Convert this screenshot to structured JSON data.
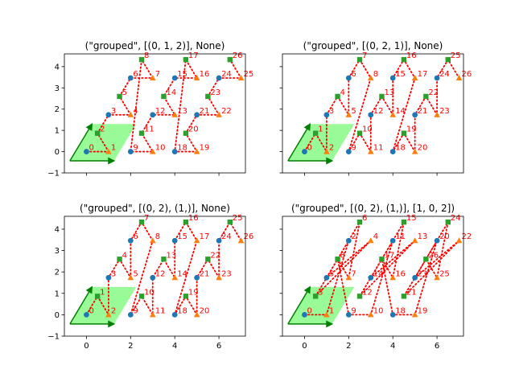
{
  "chart_data": [
    {
      "type": "scatter",
      "title": "(\"grouped\", [(0, 1, 2)], None)",
      "xlim": [
        -1,
        7.2
      ],
      "ylim": [
        -1,
        4.6
      ],
      "xticks": [
        "0",
        "2",
        "4",
        "6"
      ],
      "yticks": [
        "-1",
        "0",
        "1",
        "2",
        "3",
        "4"
      ],
      "show_xtick_labels": false,
      "show_ytick_labels": true,
      "order": [
        0,
        1,
        2,
        3,
        4,
        5,
        6,
        7,
        8,
        9,
        10,
        11,
        12,
        13,
        14,
        15,
        16,
        17,
        18,
        19,
        20,
        21,
        22,
        23,
        24,
        25,
        26
      ]
    },
    {
      "type": "scatter",
      "title": "(\"grouped\", [(0, 2, 1)], None)",
      "xlim": [
        -1,
        7.2
      ],
      "ylim": [
        -1,
        4.6
      ],
      "xticks": [
        "0",
        "2",
        "4",
        "6"
      ],
      "yticks": [
        "-1",
        "0",
        "1",
        "2",
        "3",
        "4"
      ],
      "show_xtick_labels": false,
      "show_ytick_labels": false,
      "order": [
        0,
        2,
        1,
        3,
        5,
        4,
        6,
        8,
        7,
        9,
        11,
        10,
        12,
        14,
        13,
        15,
        17,
        16,
        18,
        20,
        19,
        21,
        23,
        22,
        24,
        26,
        25
      ]
    },
    {
      "type": "scatter",
      "title": "(\"grouped\", [(0, 2), (1,)], None)",
      "xlim": [
        -1,
        7.2
      ],
      "ylim": [
        -1,
        4.6
      ],
      "xticks": [
        "0",
        "2",
        "4",
        "6"
      ],
      "yticks": [
        "-1",
        "0",
        "1",
        "2",
        "3",
        "4"
      ],
      "show_xtick_labels": true,
      "show_ytick_labels": true,
      "order": [
        0,
        2,
        1,
        3,
        5,
        4,
        6,
        8,
        7,
        9,
        11,
        10,
        12,
        14,
        13,
        15,
        17,
        16,
        18,
        20,
        19,
        21,
        23,
        22,
        24,
        26,
        25
      ]
    },
    {
      "type": "scatter",
      "title": "(\"grouped\", [(0, 2), (1,)], [1, 0, 2])",
      "xlim": [
        -1,
        7.2
      ],
      "ylim": [
        -1,
        4.6
      ],
      "xticks": [
        "0",
        "2",
        "4",
        "6"
      ],
      "yticks": [
        "-1",
        "0",
        "1",
        "2",
        "3",
        "4"
      ],
      "show_xtick_labels": true,
      "show_ytick_labels": false,
      "order": [
        0,
        1,
        6,
        2,
        7,
        3,
        8,
        4,
        5,
        9,
        10,
        15,
        11,
        16,
        12,
        17,
        13,
        14,
        18,
        19,
        24,
        20,
        25,
        21,
        26,
        22,
        23
      ]
    }
  ],
  "points": [
    {
      "x": 0,
      "y": 0,
      "m": "o"
    },
    {
      "x": 1,
      "y": 0,
      "m": "^"
    },
    {
      "x": 0.5,
      "y": 0.866,
      "m": "s"
    },
    {
      "x": 1,
      "y": 1.732,
      "m": "o"
    },
    {
      "x": 2,
      "y": 1.732,
      "m": "^"
    },
    {
      "x": 1.5,
      "y": 2.598,
      "m": "s"
    },
    {
      "x": 2,
      "y": 3.464,
      "m": "o"
    },
    {
      "x": 3,
      "y": 3.464,
      "m": "^"
    },
    {
      "x": 2.5,
      "y": 4.33,
      "m": "s"
    },
    {
      "x": 2,
      "y": 0,
      "m": "o"
    },
    {
      "x": 3,
      "y": 0,
      "m": "^"
    },
    {
      "x": 2.5,
      "y": 0.866,
      "m": "s"
    },
    {
      "x": 3,
      "y": 1.732,
      "m": "o"
    },
    {
      "x": 4,
      "y": 1.732,
      "m": "^"
    },
    {
      "x": 3.5,
      "y": 2.598,
      "m": "s"
    },
    {
      "x": 4,
      "y": 3.464,
      "m": "o"
    },
    {
      "x": 5,
      "y": 3.464,
      "m": "^"
    },
    {
      "x": 4.5,
      "y": 4.33,
      "m": "s"
    },
    {
      "x": 4,
      "y": 0,
      "m": "o"
    },
    {
      "x": 5,
      "y": 0,
      "m": "^"
    },
    {
      "x": 4.5,
      "y": 0.866,
      "m": "s"
    },
    {
      "x": 5,
      "y": 1.732,
      "m": "o"
    },
    {
      "x": 6,
      "y": 1.732,
      "m": "^"
    },
    {
      "x": 5.5,
      "y": 2.598,
      "m": "s"
    },
    {
      "x": 6,
      "y": 3.464,
      "m": "o"
    },
    {
      "x": 7,
      "y": 3.464,
      "m": "^"
    },
    {
      "x": 6.5,
      "y": 4.33,
      "m": "s"
    }
  ],
  "cell": [
    [
      -0.75,
      -0.433
    ],
    [
      1.25,
      -0.433
    ],
    [
      2.25,
      1.299
    ],
    [
      0.25,
      1.299
    ]
  ],
  "colors": {
    "circle": "#1f77b4",
    "triangle": "#ff7f0e",
    "square": "#2ca02c",
    "path": "#ff0000",
    "label": "#ff0000",
    "cell_fill": "#98fb98",
    "cell_edge": "#008000"
  }
}
